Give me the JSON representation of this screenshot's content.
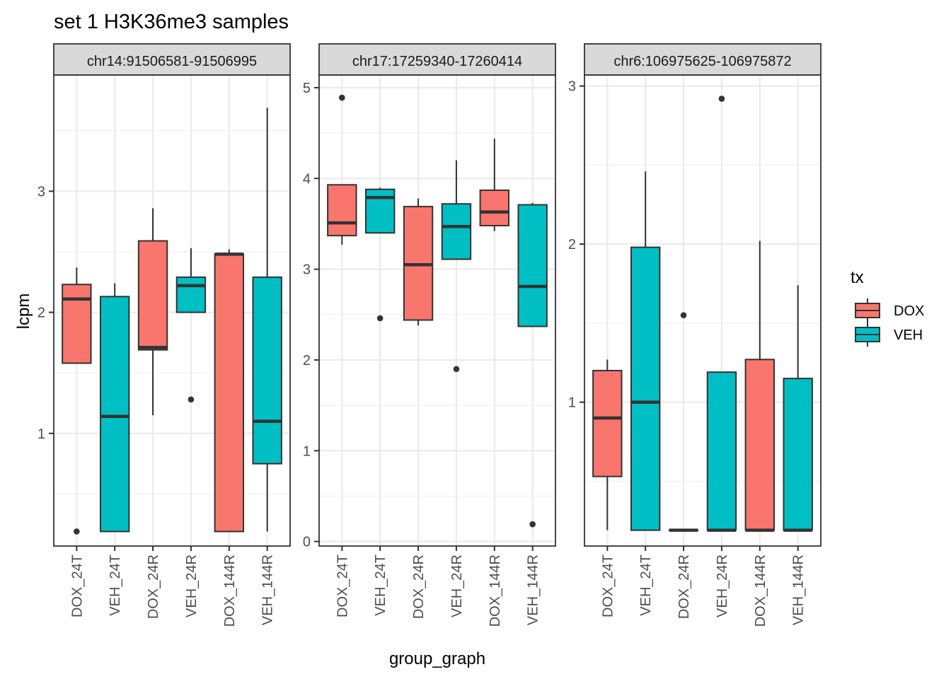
{
  "chart_data": {
    "type": "boxplot",
    "title": "set 1 H3K36me3 samples",
    "xlabel": "group_graph",
    "ylabel": "lcpm",
    "categories": [
      "DOX_24T",
      "VEH_24T",
      "DOX_24R",
      "VEH_24R",
      "DOX_144R",
      "VEH_144R"
    ],
    "category_group": [
      "DOX",
      "VEH",
      "DOX",
      "VEH",
      "DOX",
      "VEH"
    ],
    "legend": {
      "title": "tx",
      "position": "right",
      "entries": [
        {
          "label": "DOX",
          "color": "#F8766D"
        },
        {
          "label": "VEH",
          "color": "#00BFC4"
        }
      ]
    },
    "grid": true,
    "facets": [
      {
        "strip": "chr14:91506581-91506995",
        "ylim": [
          0.07,
          3.96
        ],
        "yticks": [
          1,
          2,
          3
        ],
        "boxes": [
          {
            "category": "DOX_24T",
            "lower": 1.58,
            "q1": 1.58,
            "median": 2.11,
            "q3": 2.23,
            "upper": 2.37,
            "outliers": [
              0.19
            ]
          },
          {
            "category": "VEH_24T",
            "lower": 0.19,
            "q1": 0.19,
            "median": 1.14,
            "q3": 2.13,
            "upper": 2.24,
            "outliers": []
          },
          {
            "category": "DOX_24R",
            "lower": 1.15,
            "q1": 1.69,
            "median": 1.71,
            "q3": 2.59,
            "upper": 2.86,
            "outliers": []
          },
          {
            "category": "VEH_24R",
            "lower": 2.0,
            "q1": 2.0,
            "median": 2.22,
            "q3": 2.29,
            "upper": 2.53,
            "outliers": [
              1.28
            ]
          },
          {
            "category": "DOX_144R",
            "lower": 0.19,
            "q1": 0.19,
            "median": 2.48,
            "q3": 2.48,
            "upper": 2.52,
            "outliers": []
          },
          {
            "category": "VEH_144R",
            "lower": 0.19,
            "q1": 0.75,
            "median": 1.1,
            "q3": 2.29,
            "upper": 3.69,
            "outliers": []
          }
        ]
      },
      {
        "strip": "chr17:17259340-17260414",
        "ylim": [
          -0.05,
          5.14
        ],
        "yticks": [
          0,
          1,
          2,
          3,
          4,
          5
        ],
        "boxes": [
          {
            "category": "DOX_24T",
            "lower": 3.27,
            "q1": 3.37,
            "median": 3.51,
            "q3": 3.93,
            "upper": 3.93,
            "outliers": [
              4.89
            ]
          },
          {
            "category": "VEH_24T",
            "lower": 3.4,
            "q1": 3.4,
            "median": 3.79,
            "q3": 3.88,
            "upper": 3.9,
            "outliers": [
              2.46
            ]
          },
          {
            "category": "DOX_24R",
            "lower": 2.38,
            "q1": 2.44,
            "median": 3.05,
            "q3": 3.69,
            "upper": 3.78,
            "outliers": []
          },
          {
            "category": "VEH_24R",
            "lower": 3.11,
            "q1": 3.11,
            "median": 3.47,
            "q3": 3.72,
            "upper": 4.2,
            "outliers": [
              1.9
            ]
          },
          {
            "category": "DOX_144R",
            "lower": 3.42,
            "q1": 3.48,
            "median": 3.63,
            "q3": 3.87,
            "upper": 4.44,
            "outliers": []
          },
          {
            "category": "VEH_144R",
            "lower": 2.37,
            "q1": 2.37,
            "median": 2.81,
            "q3": 3.71,
            "upper": 3.73,
            "outliers": [
              0.19
            ]
          }
        ]
      },
      {
        "strip": "chr6:106975625-106975872",
        "ylim": [
          0.09,
          3.07
        ],
        "yticks": [
          1,
          2,
          3
        ],
        "boxes": [
          {
            "category": "DOX_24T",
            "lower": 0.19,
            "q1": 0.53,
            "median": 0.9,
            "q3": 1.2,
            "upper": 1.27,
            "outliers": []
          },
          {
            "category": "VEH_24T",
            "lower": 0.19,
            "q1": 0.19,
            "median": 1.0,
            "q3": 1.98,
            "upper": 2.46,
            "outliers": []
          },
          {
            "category": "DOX_24R",
            "lower": 0.19,
            "q1": 0.19,
            "median": 0.19,
            "q3": 0.19,
            "upper": 0.19,
            "outliers": [
              1.55
            ]
          },
          {
            "category": "VEH_24R",
            "lower": 0.19,
            "q1": 0.19,
            "median": 0.19,
            "q3": 1.19,
            "upper": 1.19,
            "outliers": [
              2.92
            ]
          },
          {
            "category": "DOX_144R",
            "lower": 0.19,
            "q1": 0.19,
            "median": 0.19,
            "q3": 1.27,
            "upper": 2.02,
            "outliers": []
          },
          {
            "category": "VEH_144R",
            "lower": 0.19,
            "q1": 0.19,
            "median": 0.19,
            "q3": 1.15,
            "upper": 1.74,
            "outliers": []
          }
        ]
      }
    ]
  }
}
